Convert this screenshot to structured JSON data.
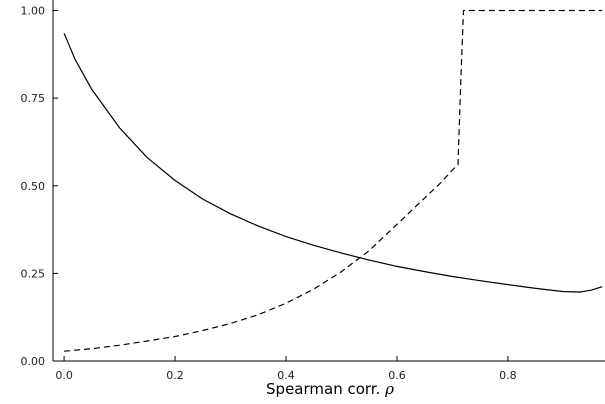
{
  "chart_data": {
    "type": "line",
    "title": "",
    "xlabel": "Spearman corr. ",
    "xlabel_symbol": "ρ",
    "ylabel": "",
    "xlim": [
      -0.02,
      0.975
    ],
    "ylim": [
      0,
      1.03
    ],
    "x_ticks": [
      0.0,
      0.2,
      0.4,
      0.6,
      0.8
    ],
    "x_tick_labels": [
      "0.0",
      "0.2",
      "0.4",
      "0.6",
      "0.8"
    ],
    "y_ticks": [
      0.0,
      0.25,
      0.5,
      0.75,
      1.0
    ],
    "y_tick_labels": [
      "0.00",
      "0.25",
      "0.50",
      "0.75",
      "1.00"
    ],
    "grid": false,
    "legend": "none",
    "colors": {
      "line": "#000000",
      "axis": "#000000"
    },
    "series": [
      {
        "style": "solid",
        "x": [
          0.0,
          0.02,
          0.05,
          0.1,
          0.15,
          0.2,
          0.25,
          0.3,
          0.35,
          0.4,
          0.45,
          0.5,
          0.55,
          0.6,
          0.65,
          0.7,
          0.75,
          0.8,
          0.85,
          0.9,
          0.93,
          0.95,
          0.97
        ],
        "y": [
          0.935,
          0.86,
          0.775,
          0.665,
          0.58,
          0.515,
          0.462,
          0.42,
          0.385,
          0.355,
          0.33,
          0.308,
          0.288,
          0.27,
          0.255,
          0.241,
          0.229,
          0.218,
          0.207,
          0.198,
          0.197,
          0.202,
          0.212
        ]
      },
      {
        "style": "dashed",
        "x": [
          0.0,
          0.05,
          0.1,
          0.15,
          0.2,
          0.25,
          0.3,
          0.35,
          0.4,
          0.45,
          0.5,
          0.55,
          0.6,
          0.65,
          0.68,
          0.7,
          0.71,
          0.715,
          0.72,
          0.75,
          0.8,
          0.85,
          0.9,
          0.95,
          0.97
        ],
        "y": [
          0.028,
          0.035,
          0.045,
          0.057,
          0.07,
          0.087,
          0.107,
          0.132,
          0.165,
          0.205,
          0.255,
          0.315,
          0.39,
          0.465,
          0.51,
          0.545,
          0.56,
          0.8,
          1.0,
          1.0,
          1.0,
          1.0,
          1.0,
          1.0,
          1.0
        ]
      }
    ]
  }
}
